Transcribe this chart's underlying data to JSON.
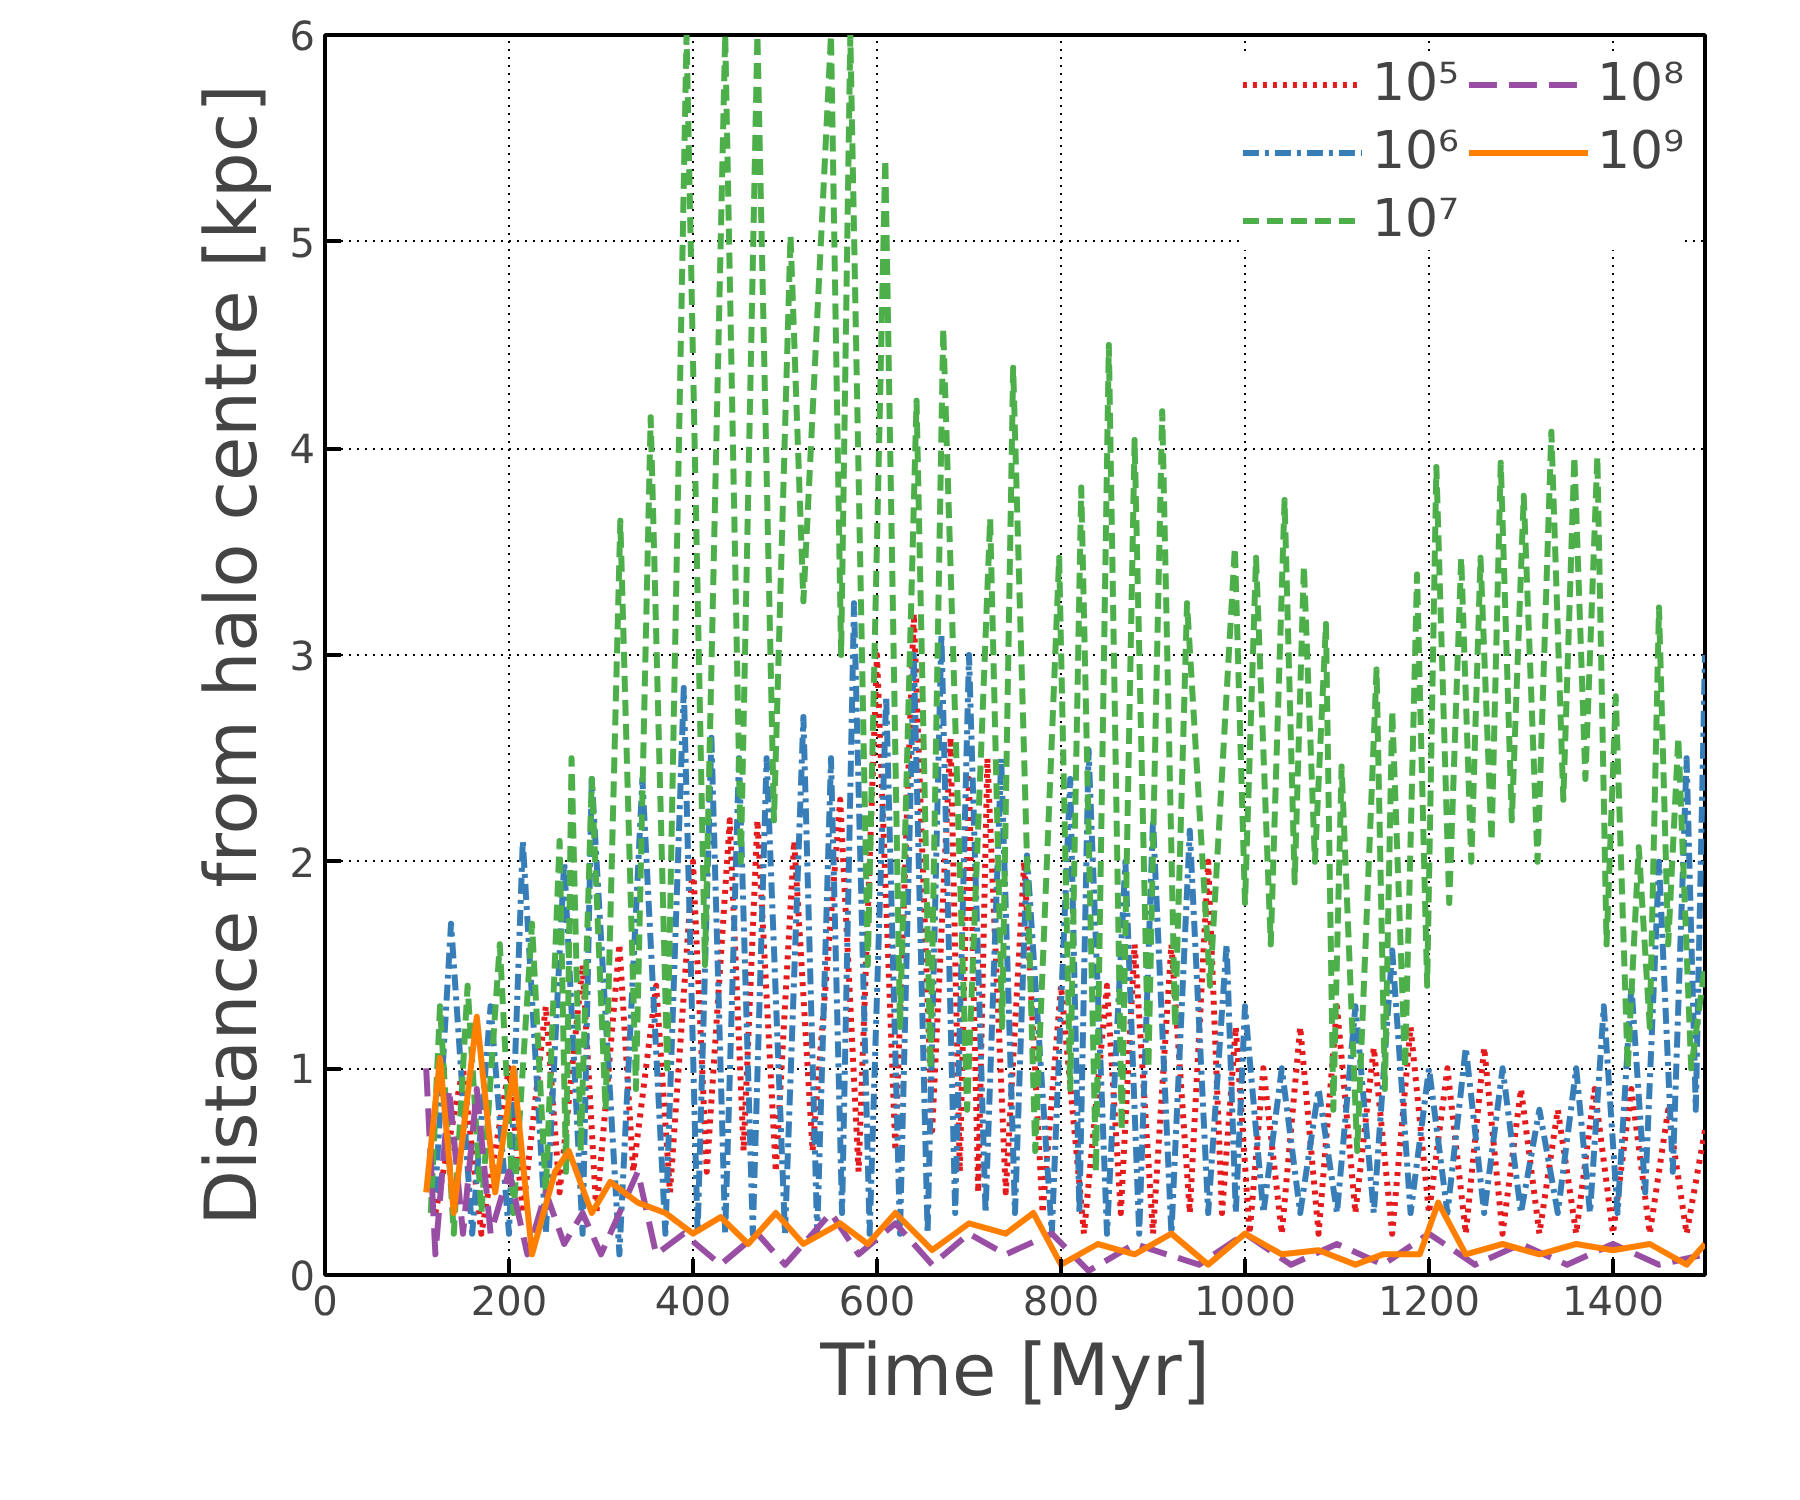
{
  "chart_data": {
    "type": "line",
    "xlabel": "Time [Myr]",
    "ylabel": "Distance from halo centre [kpc]",
    "xlim": [
      0,
      1500
    ],
    "ylim": [
      0,
      6
    ],
    "xticks": [
      0,
      200,
      400,
      600,
      800,
      1000,
      1200,
      1400
    ],
    "yticks": [
      0,
      1,
      2,
      3,
      4,
      5,
      6
    ],
    "grid": true,
    "legend": "top right",
    "series": [
      {
        "name": "10⁵",
        "color": "#e41a1c",
        "line_style": "dotted",
        "x": [
          120,
          150,
          170,
          200,
          215,
          240,
          255,
          280,
          295,
          320,
          335,
          360,
          375,
          400,
          415,
          440,
          455,
          470,
          490,
          510,
          530,
          560,
          580,
          600,
          620,
          640,
          660,
          680,
          690,
          700,
          710,
          720,
          740,
          760,
          780,
          800,
          825,
          850,
          865,
          880,
          900,
          920,
          940,
          960,
          975,
          990,
          1005,
          1020,
          1040,
          1060,
          1080,
          1100,
          1120,
          1140,
          1160,
          1180,
          1200,
          1220,
          1240,
          1260,
          1280,
          1300,
          1320,
          1340,
          1360,
          1380,
          1400,
          1420,
          1440,
          1460,
          1480,
          1500
        ],
        "values": [
          0.3,
          1.0,
          0.2,
          1.0,
          0.3,
          1.3,
          0.4,
          1.5,
          0.3,
          1.6,
          0.5,
          1.4,
          0.4,
          2.0,
          0.5,
          2.2,
          0.6,
          2.2,
          0.5,
          2.1,
          0.6,
          2.3,
          0.5,
          3.0,
          0.6,
          3.2,
          0.7,
          2.6,
          0.5,
          2.4,
          0.4,
          2.5,
          0.4,
          2.0,
          0.3,
          1.4,
          0.2,
          1.4,
          0.3,
          1.6,
          0.2,
          1.6,
          0.3,
          2.0,
          0.3,
          1.2,
          0.2,
          1.0,
          0.2,
          1.2,
          0.2,
          1.3,
          0.3,
          1.1,
          0.2,
          1.2,
          0.3,
          1.0,
          0.2,
          1.1,
          0.2,
          0.9,
          0.2,
          0.8,
          0.2,
          0.9,
          0.2,
          0.9,
          0.2,
          0.8,
          0.2,
          0.7
        ]
      },
      {
        "name": "10⁶",
        "color": "#377eb8",
        "line_style": "dashdot",
        "x": [
          120,
          137,
          160,
          180,
          200,
          215,
          240,
          260,
          280,
          290,
          320,
          345,
          370,
          390,
          405,
          420,
          435,
          450,
          465,
          480,
          500,
          520,
          535,
          550,
          562,
          575,
          592,
          610,
          625,
          640,
          655,
          670,
          685,
          700,
          718,
          735,
          750,
          763,
          790,
          810,
          820,
          830,
          850,
          870,
          885,
          900,
          920,
          940,
          960,
          980,
          990,
          1000,
          1020,
          1040,
          1060,
          1080,
          1100,
          1120,
          1140,
          1160,
          1180,
          1200,
          1220,
          1240,
          1260,
          1280,
          1300,
          1320,
          1340,
          1360,
          1375,
          1390,
          1405,
          1420,
          1435,
          1450,
          1465,
          1480,
          1490,
          1500
        ],
        "values": [
          0.4,
          1.7,
          0.2,
          1.3,
          0.2,
          2.1,
          0.2,
          2.0,
          0.2,
          2.4,
          0.1,
          2.4,
          0.2,
          2.84,
          0.2,
          2.6,
          0.2,
          2.5,
          0.2,
          2.5,
          0.2,
          2.7,
          0.2,
          2.5,
          0.3,
          3.25,
          0.2,
          2.8,
          0.2,
          3.0,
          0.2,
          3.1,
          0.3,
          3.0,
          0.3,
          2.5,
          0.3,
          2.03,
          0.2,
          2.4,
          0.3,
          2.54,
          0.2,
          2.0,
          0.2,
          2.2,
          0.2,
          2.15,
          0.3,
          1.6,
          0.3,
          1.3,
          0.3,
          1.0,
          0.3,
          0.9,
          0.3,
          1.3,
          0.3,
          1.57,
          0.3,
          1.0,
          0.3,
          1.1,
          0.3,
          1.0,
          0.3,
          0.8,
          0.3,
          1.0,
          0.3,
          1.3,
          0.3,
          1.4,
          0.4,
          2.0,
          0.5,
          2.5,
          0.8,
          3.0
        ]
      },
      {
        "name": "10⁷",
        "color": "#4daf4a",
        "line_style": "dashed",
        "x": [
          115,
          125,
          140,
          155,
          170,
          190,
          205,
          225,
          240,
          255,
          262,
          268,
          278,
          290,
          305,
          321,
          338,
          354,
          372,
          393,
          413,
          435,
          452,
          470,
          488,
          506,
          520,
          550,
          561,
          571,
          590,
          609,
          625,
          643,
          658,
          672,
          698,
          723,
          736,
          748,
          772,
          798,
          810,
          822,
          838,
          852,
          866,
          880,
          895,
          910,
          924,
          937,
          962,
          989,
          1000,
          1012,
          1028,
          1043,
          1054,
          1064,
          1076,
          1088,
          1096,
          1105,
          1122,
          1143,
          1152,
          1160,
          1174,
          1187,
          1198,
          1208,
          1222,
          1235,
          1246,
          1256,
          1268,
          1278,
          1290,
          1303,
          1318,
          1333,
          1346,
          1358,
          1370,
          1383,
          1393,
          1403,
          1416,
          1428,
          1440,
          1450,
          1460,
          1471,
          1485,
          1500
        ],
        "values": [
          0.3,
          1.3,
          0.2,
          1.4,
          0.3,
          1.6,
          0.3,
          1.7,
          0.4,
          2.1,
          0.5,
          2.5,
          0.6,
          2.4,
          0.8,
          3.65,
          0.9,
          4.15,
          1.0,
          6,
          1.5,
          6,
          2.0,
          6,
          2.2,
          5.03,
          3.26,
          6,
          3.0,
          6,
          1.5,
          5.4,
          1.2,
          4.23,
          1.0,
          4.58,
          0.8,
          3.66,
          1.2,
          4.39,
          0.6,
          3.47,
          0.9,
          3.81,
          0.5,
          4.5,
          0.7,
          4.04,
          1.0,
          4.18,
          1.2,
          3.25,
          1.4,
          3.52,
          1.8,
          3.47,
          1.6,
          3.75,
          1.9,
          3.43,
          2.0,
          3.15,
          0.8,
          2.46,
          0.6,
          2.93,
          0.9,
          2.73,
          1.0,
          3.39,
          1.4,
          3.91,
          1.8,
          3.47,
          2.0,
          3.47,
          2.1,
          3.93,
          2.2,
          3.77,
          2.0,
          4.08,
          2.3,
          3.96,
          2.4,
          3.96,
          1.6,
          2.8,
          1.0,
          2.07,
          1.2,
          3.23,
          1.6,
          2.6,
          1.0,
          1.5
        ]
      },
      {
        "name": "10⁸",
        "color": "#984ea3",
        "line_style": "longdash",
        "x": [
          110,
          120,
          135,
          150,
          165,
          180,
          200,
          220,
          240,
          260,
          280,
          300,
          340,
          360,
          390,
          430,
          470,
          500,
          550,
          580,
          620,
          660,
          700,
          740,
          790,
          830,
          880,
          950,
          1000,
          1050,
          1100,
          1150,
          1200,
          1250,
          1300,
          1350,
          1400,
          1450,
          1500
        ],
        "values": [
          1.0,
          0.1,
          0.9,
          0.2,
          0.9,
          0.2,
          0.5,
          0.1,
          0.4,
          0.15,
          0.3,
          0.1,
          0.5,
          0.1,
          0.2,
          0.05,
          0.2,
          0.05,
          0.3,
          0.1,
          0.25,
          0.05,
          0.2,
          0.1,
          0.2,
          0.02,
          0.15,
          0.05,
          0.2,
          0.05,
          0.15,
          0.05,
          0.2,
          0.05,
          0.15,
          0.05,
          0.15,
          0.05,
          0.1
        ]
      },
      {
        "name": "10⁹",
        "color": "#ff7f00",
        "line_style": "solid",
        "x": [
          110,
          125,
          140,
          165,
          185,
          205,
          225,
          250,
          265,
          290,
          310,
          340,
          370,
          400,
          430,
          460,
          490,
          520,
          560,
          590,
          620,
          660,
          700,
          740,
          770,
          800,
          840,
          880,
          920,
          960,
          1000,
          1040,
          1080,
          1120,
          1150,
          1190,
          1210,
          1240,
          1280,
          1320,
          1360,
          1400,
          1440,
          1480,
          1500
        ],
        "values": [
          0.4,
          1.05,
          0.3,
          1.25,
          0.4,
          1.0,
          0.1,
          0.5,
          0.6,
          0.3,
          0.45,
          0.35,
          0.3,
          0.2,
          0.28,
          0.15,
          0.3,
          0.15,
          0.25,
          0.15,
          0.3,
          0.12,
          0.25,
          0.2,
          0.3,
          0.05,
          0.15,
          0.1,
          0.2,
          0.05,
          0.2,
          0.1,
          0.12,
          0.05,
          0.1,
          0.1,
          0.35,
          0.1,
          0.15,
          0.1,
          0.15,
          0.12,
          0.15,
          0.05,
          0.15
        ]
      }
    ]
  }
}
